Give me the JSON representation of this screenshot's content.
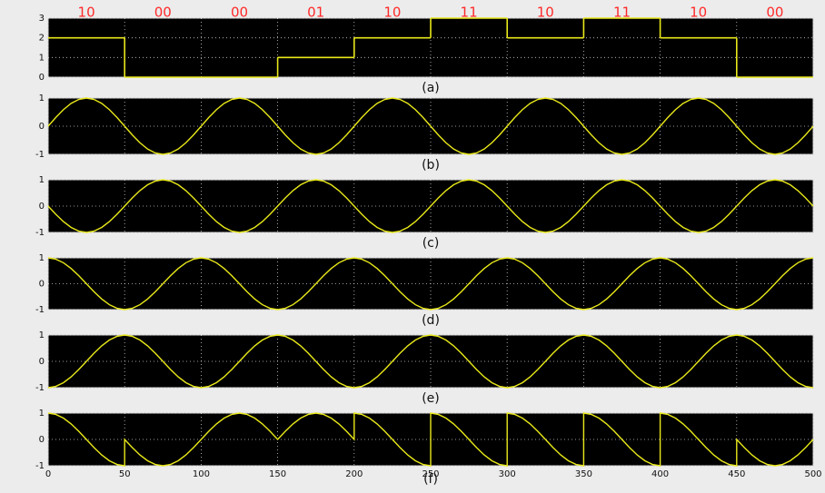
{
  "chart_data": [
    {
      "type": "step",
      "caption": "(a)",
      "color": "#e8e81a",
      "annotations": [
        "10",
        "00",
        "00",
        "01",
        "10",
        "11",
        "10",
        "11",
        "10",
        "00"
      ],
      "x": [
        0,
        50,
        100,
        150,
        200,
        250,
        300,
        350,
        400,
        450
      ],
      "values": [
        2,
        0,
        0,
        1,
        2,
        3,
        2,
        3,
        2,
        0
      ],
      "xlim": [
        0,
        500
      ],
      "xticks": [
        0,
        50,
        100,
        150,
        200,
        250,
        300,
        350,
        400,
        450,
        500
      ],
      "ylim": [
        0,
        3
      ],
      "yticks": [
        0,
        1,
        2,
        3
      ],
      "grid": true,
      "xtick_labels": false
    },
    {
      "type": "line",
      "caption": "(b)",
      "color": "#e8e81a",
      "x": [
        0,
        5,
        10,
        15,
        20,
        25,
        30,
        35,
        40,
        45,
        50,
        55,
        60,
        65,
        70,
        75,
        80,
        85,
        90,
        95,
        100,
        105,
        110,
        115,
        120,
        125,
        130,
        135,
        140,
        145,
        150,
        155,
        160,
        165,
        170,
        175,
        180,
        185,
        190,
        195,
        200,
        205,
        210,
        215,
        220,
        225,
        230,
        235,
        240,
        245,
        250,
        255,
        260,
        265,
        270,
        275,
        280,
        285,
        290,
        295,
        300,
        305,
        310,
        315,
        320,
        325,
        330,
        335,
        340,
        345,
        350,
        355,
        360,
        365,
        370,
        375,
        380,
        385,
        390,
        395,
        400,
        405,
        410,
        415,
        420,
        425,
        430,
        435,
        440,
        445,
        450,
        455,
        460,
        465,
        470,
        475,
        480,
        485,
        490,
        495,
        500
      ],
      "values": [
        0,
        0.31,
        0.59,
        0.81,
        0.95,
        1,
        0.95,
        0.81,
        0.59,
        0.31,
        0,
        -0.31,
        -0.59,
        -0.81,
        -0.95,
        -1,
        -0.95,
        -0.81,
        -0.59,
        -0.31,
        0,
        0.31,
        0.59,
        0.81,
        0.95,
        1,
        0.95,
        0.81,
        0.59,
        0.31,
        0,
        -0.31,
        -0.59,
        -0.81,
        -0.95,
        -1,
        -0.95,
        -0.81,
        -0.59,
        -0.31,
        0,
        0.31,
        0.59,
        0.81,
        0.95,
        1,
        0.95,
        0.81,
        0.59,
        0.31,
        0,
        -0.31,
        -0.59,
        -0.81,
        -0.95,
        -1,
        -0.95,
        -0.81,
        -0.59,
        -0.31,
        0,
        0.31,
        0.59,
        0.81,
        0.95,
        1,
        0.95,
        0.81,
        0.59,
        0.31,
        0,
        -0.31,
        -0.59,
        -0.81,
        -0.95,
        -1,
        -0.95,
        -0.81,
        -0.59,
        -0.31,
        0,
        0.31,
        0.59,
        0.81,
        0.95,
        1,
        0.95,
        0.81,
        0.59,
        0.31,
        0,
        -0.31,
        -0.59,
        -0.81,
        -0.95,
        -1,
        -0.95,
        -0.81,
        -0.59,
        -0.31,
        0
      ],
      "xlim": [
        0,
        500
      ],
      "xticks": [
        0,
        50,
        100,
        150,
        200,
        250,
        300,
        350,
        400,
        450,
        500
      ],
      "ylim": [
        -1,
        1
      ],
      "yticks": [
        -1,
        0,
        1
      ],
      "grid": true,
      "xtick_labels": false
    },
    {
      "type": "line",
      "caption": "(c)",
      "color": "#e8e81a",
      "x": [
        0,
        5,
        10,
        15,
        20,
        25,
        30,
        35,
        40,
        45,
        50,
        55,
        60,
        65,
        70,
        75,
        80,
        85,
        90,
        95,
        100,
        105,
        110,
        115,
        120,
        125,
        130,
        135,
        140,
        145,
        150,
        155,
        160,
        165,
        170,
        175,
        180,
        185,
        190,
        195,
        200,
        205,
        210,
        215,
        220,
        225,
        230,
        235,
        240,
        245,
        250,
        255,
        260,
        265,
        270,
        275,
        280,
        285,
        290,
        295,
        300,
        305,
        310,
        315,
        320,
        325,
        330,
        335,
        340,
        345,
        350,
        355,
        360,
        365,
        370,
        375,
        380,
        385,
        390,
        395,
        400,
        405,
        410,
        415,
        420,
        425,
        430,
        435,
        440,
        445,
        450,
        455,
        460,
        465,
        470,
        475,
        480,
        485,
        490,
        495,
        500
      ],
      "values": [
        0,
        -0.31,
        -0.59,
        -0.81,
        -0.95,
        -1,
        -0.95,
        -0.81,
        -0.59,
        -0.31,
        0,
        0.31,
        0.59,
        0.81,
        0.95,
        1,
        0.95,
        0.81,
        0.59,
        0.31,
        0,
        -0.31,
        -0.59,
        -0.81,
        -0.95,
        -1,
        -0.95,
        -0.81,
        -0.59,
        -0.31,
        0,
        0.31,
        0.59,
        0.81,
        0.95,
        1,
        0.95,
        0.81,
        0.59,
        0.31,
        0,
        -0.31,
        -0.59,
        -0.81,
        -0.95,
        -1,
        -0.95,
        -0.81,
        -0.59,
        -0.31,
        0,
        0.31,
        0.59,
        0.81,
        0.95,
        1,
        0.95,
        0.81,
        0.59,
        0.31,
        0,
        -0.31,
        -0.59,
        -0.81,
        -0.95,
        -1,
        -0.95,
        -0.81,
        -0.59,
        -0.31,
        0,
        0.31,
        0.59,
        0.81,
        0.95,
        1,
        0.95,
        0.81,
        0.59,
        0.31,
        0,
        -0.31,
        -0.59,
        -0.81,
        -0.95,
        -1,
        -0.95,
        -0.81,
        -0.59,
        -0.31,
        0,
        0.31,
        0.59,
        0.81,
        0.95,
        1,
        0.95,
        0.81,
        0.59,
        0.31,
        0
      ],
      "xlim": [
        0,
        500
      ],
      "xticks": [
        0,
        50,
        100,
        150,
        200,
        250,
        300,
        350,
        400,
        450,
        500
      ],
      "ylim": [
        -1,
        1
      ],
      "yticks": [
        -1,
        0,
        1
      ],
      "grid": true,
      "xtick_labels": false
    },
    {
      "type": "line",
      "caption": "(d)",
      "color": "#e8e81a",
      "x": [
        0,
        5,
        10,
        15,
        20,
        25,
        30,
        35,
        40,
        45,
        50,
        55,
        60,
        65,
        70,
        75,
        80,
        85,
        90,
        95,
        100,
        105,
        110,
        115,
        120,
        125,
        130,
        135,
        140,
        145,
        150,
        155,
        160,
        165,
        170,
        175,
        180,
        185,
        190,
        195,
        200,
        205,
        210,
        215,
        220,
        225,
        230,
        235,
        240,
        245,
        250,
        255,
        260,
        265,
        270,
        275,
        280,
        285,
        290,
        295,
        300,
        305,
        310,
        315,
        320,
        325,
        330,
        335,
        340,
        345,
        350,
        355,
        360,
        365,
        370,
        375,
        380,
        385,
        390,
        395,
        400,
        405,
        410,
        415,
        420,
        425,
        430,
        435,
        440,
        445,
        450,
        455,
        460,
        465,
        470,
        475,
        480,
        485,
        490,
        495,
        500
      ],
      "values": [
        1,
        0.95,
        0.81,
        0.59,
        0.31,
        0,
        -0.31,
        -0.59,
        -0.81,
        -0.95,
        -1,
        -0.95,
        -0.81,
        -0.59,
        -0.31,
        0,
        0.31,
        0.59,
        0.81,
        0.95,
        1,
        0.95,
        0.81,
        0.59,
        0.31,
        0,
        -0.31,
        -0.59,
        -0.81,
        -0.95,
        -1,
        -0.95,
        -0.81,
        -0.59,
        -0.31,
        0,
        0.31,
        0.59,
        0.81,
        0.95,
        1,
        0.95,
        0.81,
        0.59,
        0.31,
        0,
        -0.31,
        -0.59,
        -0.81,
        -0.95,
        -1,
        -0.95,
        -0.81,
        -0.59,
        -0.31,
        0,
        0.31,
        0.59,
        0.81,
        0.95,
        1,
        0.95,
        0.81,
        0.59,
        0.31,
        0,
        -0.31,
        -0.59,
        -0.81,
        -0.95,
        -1,
        -0.95,
        -0.81,
        -0.59,
        -0.31,
        0,
        0.31,
        0.59,
        0.81,
        0.95,
        1,
        0.95,
        0.81,
        0.59,
        0.31,
        0,
        -0.31,
        -0.59,
        -0.81,
        -0.95,
        -1,
        -0.95,
        -0.81,
        -0.59,
        -0.31,
        0,
        0.31,
        0.59,
        0.81,
        0.95,
        1
      ],
      "xlim": [
        0,
        500
      ],
      "xticks": [
        0,
        50,
        100,
        150,
        200,
        250,
        300,
        350,
        400,
        450,
        500
      ],
      "ylim": [
        -1,
        1
      ],
      "yticks": [
        -1,
        0,
        1
      ],
      "grid": true,
      "xtick_labels": false
    },
    {
      "type": "line",
      "caption": "(e)",
      "color": "#e8e81a",
      "x": [
        0,
        5,
        10,
        15,
        20,
        25,
        30,
        35,
        40,
        45,
        50,
        55,
        60,
        65,
        70,
        75,
        80,
        85,
        90,
        95,
        100,
        105,
        110,
        115,
        120,
        125,
        130,
        135,
        140,
        145,
        150,
        155,
        160,
        165,
        170,
        175,
        180,
        185,
        190,
        195,
        200,
        205,
        210,
        215,
        220,
        225,
        230,
        235,
        240,
        245,
        250,
        255,
        260,
        265,
        270,
        275,
        280,
        285,
        290,
        295,
        300,
        305,
        310,
        315,
        320,
        325,
        330,
        335,
        340,
        345,
        350,
        355,
        360,
        365,
        370,
        375,
        380,
        385,
        390,
        395,
        400,
        405,
        410,
        415,
        420,
        425,
        430,
        435,
        440,
        445,
        450,
        455,
        460,
        465,
        470,
        475,
        480,
        485,
        490,
        495,
        500
      ],
      "values": [
        -1,
        -0.95,
        -0.81,
        -0.59,
        -0.31,
        0,
        0.31,
        0.59,
        0.81,
        0.95,
        1,
        0.95,
        0.81,
        0.59,
        0.31,
        0,
        -0.31,
        -0.59,
        -0.81,
        -0.95,
        -1,
        -0.95,
        -0.81,
        -0.59,
        -0.31,
        0,
        0.31,
        0.59,
        0.81,
        0.95,
        1,
        0.95,
        0.81,
        0.59,
        0.31,
        0,
        -0.31,
        -0.59,
        -0.81,
        -0.95,
        -1,
        -0.95,
        -0.81,
        -0.59,
        -0.31,
        0,
        0.31,
        0.59,
        0.81,
        0.95,
        1,
        0.95,
        0.81,
        0.59,
        0.31,
        0,
        -0.31,
        -0.59,
        -0.81,
        -0.95,
        -1,
        -0.95,
        -0.81,
        -0.59,
        -0.31,
        0,
        0.31,
        0.59,
        0.81,
        0.95,
        1,
        0.95,
        0.81,
        0.59,
        0.31,
        0,
        -0.31,
        -0.59,
        -0.81,
        -0.95,
        -1,
        -0.95,
        -0.81,
        -0.59,
        -0.31,
        0,
        0.31,
        0.59,
        0.81,
        0.95,
        1,
        0.95,
        0.81,
        0.59,
        0.31,
        0,
        -0.31,
        -0.59,
        -0.81,
        -0.95,
        -1
      ],
      "xlim": [
        0,
        500
      ],
      "xticks": [
        0,
        50,
        100,
        150,
        200,
        250,
        300,
        350,
        400,
        450,
        500
      ],
      "ylim": [
        -1,
        1
      ],
      "yticks": [
        -1,
        0,
        1
      ],
      "grid": true,
      "xtick_labels": false
    },
    {
      "type": "line",
      "caption": "(f)",
      "color": "#e8e81a",
      "x": [
        0,
        5,
        10,
        15,
        20,
        25,
        30,
        35,
        40,
        45,
        50,
        50,
        55,
        60,
        65,
        70,
        75,
        80,
        85,
        90,
        95,
        100,
        100,
        105,
        110,
        115,
        120,
        125,
        130,
        135,
        140,
        145,
        150,
        150,
        155,
        160,
        165,
        170,
        175,
        180,
        185,
        190,
        195,
        200,
        200,
        205,
        210,
        215,
        220,
        225,
        230,
        235,
        240,
        245,
        250,
        250,
        255,
        260,
        265,
        270,
        275,
        280,
        285,
        290,
        295,
        300,
        300,
        305,
        310,
        315,
        320,
        325,
        330,
        335,
        340,
        345,
        350,
        350,
        355,
        360,
        365,
        370,
        375,
        380,
        385,
        390,
        395,
        400,
        400,
        405,
        410,
        415,
        420,
        425,
        430,
        435,
        440,
        445,
        450,
        450,
        455,
        460,
        465,
        470,
        475,
        480,
        485,
        490,
        495,
        500
      ],
      "values": [
        1,
        0.95,
        0.81,
        0.59,
        0.31,
        0,
        -0.31,
        -0.59,
        -0.81,
        -0.95,
        -1,
        0,
        -0.31,
        -0.59,
        -0.81,
        -0.95,
        -1,
        -0.95,
        -0.81,
        -0.59,
        -0.31,
        0,
        0,
        0.31,
        0.59,
        0.81,
        0.95,
        1,
        0.95,
        0.81,
        0.59,
        0.31,
        0,
        0,
        0.31,
        0.59,
        0.81,
        0.95,
        1,
        0.95,
        0.81,
        0.59,
        0.31,
        0,
        1,
        0.95,
        0.81,
        0.59,
        0.31,
        0,
        -0.31,
        -0.59,
        -0.81,
        -0.95,
        -1,
        1,
        0.95,
        0.81,
        0.59,
        0.31,
        0,
        -0.31,
        -0.59,
        -0.81,
        -0.95,
        -1,
        1,
        0.95,
        0.81,
        0.59,
        0.31,
        0,
        -0.31,
        -0.59,
        -0.81,
        -0.95,
        -1,
        1,
        0.95,
        0.81,
        0.59,
        0.31,
        0,
        -0.31,
        -0.59,
        -0.81,
        -0.95,
        -1,
        1,
        0.95,
        0.81,
        0.59,
        0.31,
        0,
        -0.31,
        -0.59,
        -0.81,
        -0.95,
        -1,
        0,
        -0.31,
        -0.59,
        -0.81,
        -0.95,
        -1,
        -0.95,
        -0.81,
        -0.59,
        -0.31,
        0
      ],
      "xlim": [
        0,
        500
      ],
      "xticks": [
        0,
        50,
        100,
        150,
        200,
        250,
        300,
        350,
        400,
        450,
        500
      ],
      "ylim": [
        -1,
        1
      ],
      "yticks": [
        -1,
        0,
        1
      ],
      "grid": true,
      "xtick_labels": true
    }
  ]
}
